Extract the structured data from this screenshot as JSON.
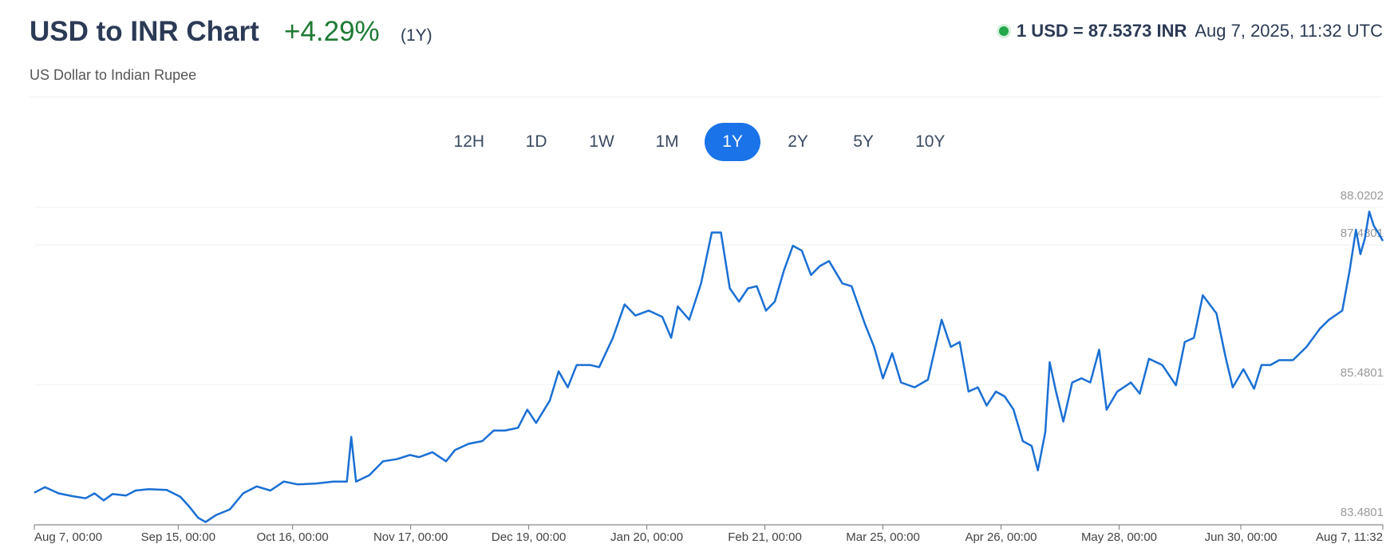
{
  "header": {
    "title": "USD to INR Chart",
    "change": "+4.29%",
    "period": "(1Y)",
    "subtitle": "US Dollar to Indian Rupee",
    "rate": "1 USD = 87.5373 INR",
    "timestamp": "Aug 7, 2025, 11:32 UTC"
  },
  "range_buttons": {
    "options": [
      "12H",
      "1D",
      "1W",
      "1M",
      "1Y",
      "2Y",
      "5Y",
      "10Y"
    ],
    "selected": "1Y"
  },
  "chart_data": {
    "type": "line",
    "color": "#1a6fd4",
    "grid": true,
    "x": [
      0,
      2.9,
      6.6,
      10.3,
      13.9,
      16.3,
      18.8,
      21.2,
      24.9,
      27.4,
      31.0,
      35.9,
      39.6,
      42.0,
      44.4,
      46.4,
      49.3,
      53.0,
      56.6,
      60.3,
      64.0,
      67.6,
      71.3,
      76.2,
      81.1,
      84.7,
      85.9,
      87.2,
      90.8,
      94.5,
      98.2,
      101.8,
      104.3,
      107.9,
      111.6,
      114.0,
      117.7,
      121.4,
      124.5,
      127.5,
      131.1,
      133.6,
      136.0,
      139.7,
      142.1,
      144.6,
      147.0,
      150.7,
      153.1,
      156.8,
      160.0,
      162.9,
      166.5,
      170.2,
      172.6,
      174.4,
      177.5,
      180.7,
      183.6,
      186.1,
      188.5,
      191.0,
      193.4,
      195.8,
      198.3,
      200.7,
      203.2,
      205.6,
      208.0,
      210.5,
      212.9,
      215.4,
      219.0,
      221.5,
      225.1,
      227.6,
      230.0,
      232.5,
      234.9,
      238.6,
      242.2,
      245.9,
      248.4,
      250.8,
      253.2,
      255.7,
      258.1,
      260.6,
      263.0,
      265.4,
      267.9,
      270.3,
      272.0,
      274.0,
      275.2,
      276.9,
      278.9,
      281.3,
      283.8,
      286.2,
      288.6,
      290.6,
      293.5,
      297.2,
      299.6,
      302.1,
      305.7,
      309.4,
      311.8,
      314.3,
      316.7,
      320.4,
      322.8,
      324.8,
      327.7,
      330.6,
      332.6,
      335.0,
      337.4,
      341.1,
      344.8,
      348.4,
      350.9,
      354.5,
      356.5,
      358.2,
      359.4,
      360.6,
      361.8,
      363.0,
      364.2,
      365.48
    ],
    "values": [
      83.93,
      84.01,
      83.92,
      83.88,
      83.85,
      83.92,
      83.82,
      83.91,
      83.89,
      83.96,
      83.98,
      83.97,
      83.87,
      83.73,
      83.57,
      83.51,
      83.61,
      83.69,
      83.92,
      84.02,
      83.96,
      84.09,
      84.05,
      84.06,
      84.09,
      84.09,
      84.73,
      84.09,
      84.18,
      84.38,
      84.41,
      84.47,
      84.44,
      84.51,
      84.38,
      84.54,
      84.63,
      84.67,
      84.82,
      84.82,
      84.86,
      85.12,
      84.93,
      85.25,
      85.67,
      85.44,
      85.76,
      85.76,
      85.73,
      86.15,
      86.63,
      86.47,
      86.54,
      86.45,
      86.15,
      86.6,
      86.41,
      86.93,
      87.66,
      87.66,
      86.86,
      86.67,
      86.86,
      86.89,
      86.54,
      86.67,
      87.12,
      87.47,
      87.4,
      87.05,
      87.18,
      87.25,
      86.93,
      86.89,
      86.35,
      86.02,
      85.57,
      85.93,
      85.51,
      85.44,
      85.55,
      86.41,
      86.02,
      86.09,
      85.38,
      85.44,
      85.18,
      85.38,
      85.31,
      85.12,
      84.67,
      84.6,
      84.25,
      84.8,
      85.8,
      85.38,
      84.95,
      85.51,
      85.57,
      85.51,
      85.98,
      85.12,
      85.38,
      85.51,
      85.35,
      85.85,
      85.76,
      85.47,
      86.09,
      86.15,
      86.76,
      86.5,
      85.89,
      85.44,
      85.7,
      85.42,
      85.76,
      85.76,
      85.83,
      85.83,
      86.02,
      86.28,
      86.41,
      86.54,
      87.12,
      87.7,
      87.35,
      87.57,
      87.96,
      87.76,
      87.66,
      87.54
    ],
    "xlim": [
      0,
      365.48
    ],
    "xticks": [
      {
        "value": 0,
        "label": "Aug 7, 00:00"
      },
      {
        "value": 39,
        "label": "Sep 15, 00:00"
      },
      {
        "value": 70,
        "label": "Oct 16, 00:00"
      },
      {
        "value": 102,
        "label": "Nov 17, 00:00"
      },
      {
        "value": 134,
        "label": "Dec 19, 00:00"
      },
      {
        "value": 166,
        "label": "Jan 20, 00:00"
      },
      {
        "value": 198,
        "label": "Feb 21, 00:00"
      },
      {
        "value": 230,
        "label": "Mar 25, 00:00"
      },
      {
        "value": 262,
        "label": "Apr 26, 00:00"
      },
      {
        "value": 294,
        "label": "May 28, 00:00"
      },
      {
        "value": 327,
        "label": "Jun 30, 00:00"
      },
      {
        "value": 365.48,
        "label": "Aug 7, 11:32"
      }
    ],
    "ylim": [
      83.4801,
      88.0202
    ],
    "yticks": [
      83.4801,
      85.4801,
      87.4801,
      88.0202
    ]
  }
}
